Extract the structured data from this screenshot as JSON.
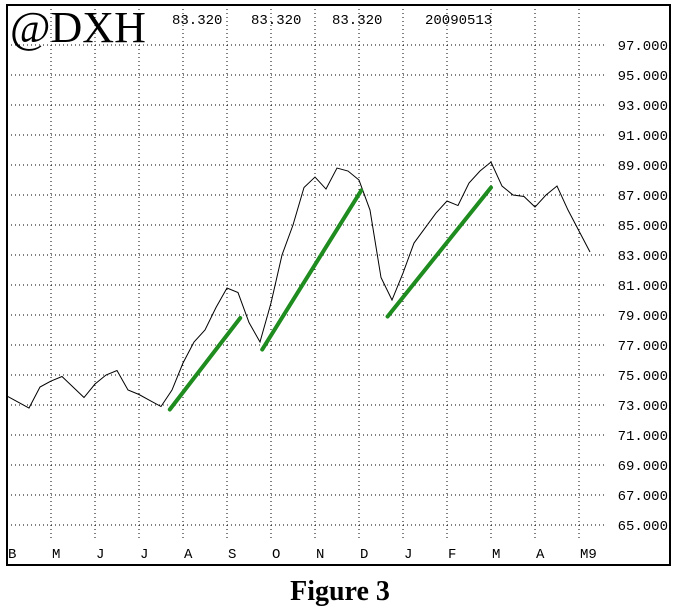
{
  "chart_data": {
    "type": "line",
    "title": "@DXH",
    "header_values": [
      "83.320",
      "83.320",
      "83.320",
      "20090513"
    ],
    "caption": "Figure 3",
    "x": [
      0,
      5,
      10,
      15,
      20,
      25,
      30,
      35,
      40,
      45,
      50,
      55,
      60,
      65,
      70,
      75,
      80,
      85,
      90,
      95,
      100,
      105,
      110,
      115,
      120,
      125,
      130,
      135,
      140,
      145,
      150,
      155,
      160,
      165,
      170,
      175,
      180,
      185,
      190,
      195,
      200,
      205,
      210,
      215,
      220,
      225,
      230,
      235,
      240,
      245,
      250,
      255,
      260,
      265
    ],
    "series": [
      {
        "name": "@DXH",
        "color": "#000000",
        "values": [
          73.6,
          73.2,
          72.8,
          74.2,
          74.6,
          74.9,
          74.2,
          73.5,
          74.4,
          75.0,
          75.3,
          74.0,
          73.7,
          73.3,
          72.9,
          74.0,
          75.8,
          77.2,
          78.0,
          79.5,
          80.8,
          80.5,
          78.5,
          77.2,
          79.8,
          83.0,
          85.0,
          87.5,
          88.2,
          87.4,
          88.8,
          88.6,
          88.0,
          86.0,
          81.5,
          80.0,
          81.8,
          83.8,
          84.8,
          85.8,
          86.6,
          86.3,
          87.8,
          88.6,
          89.2,
          87.6,
          87.0,
          86.9,
          86.2,
          87.0,
          87.6,
          86.0,
          84.6,
          83.2
        ]
      }
    ],
    "trend_lines": {
      "color": "#1e8c1e",
      "lines": [
        {
          "x": [
            74,
            106
          ],
          "y": [
            72.7,
            78.8
          ]
        },
        {
          "x": [
            116,
            161
          ],
          "y": [
            76.7,
            87.3
          ]
        },
        {
          "x": [
            173,
            220
          ],
          "y": [
            78.9,
            87.5
          ]
        }
      ]
    },
    "xlim": [
      0,
      270
    ],
    "xticks": [
      {
        "value": 0,
        "label": "B"
      },
      {
        "value": 20,
        "label": "M"
      },
      {
        "value": 40,
        "label": "J"
      },
      {
        "value": 60,
        "label": "J"
      },
      {
        "value": 80,
        "label": "A"
      },
      {
        "value": 100,
        "label": "S"
      },
      {
        "value": 120,
        "label": "O"
      },
      {
        "value": 140,
        "label": "N"
      },
      {
        "value": 160,
        "label": "D"
      },
      {
        "value": 180,
        "label": "J"
      },
      {
        "value": 200,
        "label": "F"
      },
      {
        "value": 220,
        "label": "M"
      },
      {
        "value": 240,
        "label": "A"
      },
      {
        "value": 260,
        "label": "M9"
      }
    ],
    "ylim": [
      64,
      99.67
    ],
    "yticks": [
      {
        "value": 65,
        "label": "65.000"
      },
      {
        "value": 67,
        "label": "67.000"
      },
      {
        "value": 69,
        "label": "69.000"
      },
      {
        "value": 71,
        "label": "71.000"
      },
      {
        "value": 73,
        "label": "73.000"
      },
      {
        "value": 75,
        "label": "75.000"
      },
      {
        "value": 77,
        "label": "77.000"
      },
      {
        "value": 79,
        "label": "79.000"
      },
      {
        "value": 81,
        "label": "81.000"
      },
      {
        "value": 83,
        "label": "83.000"
      },
      {
        "value": 85,
        "label": "85.000"
      },
      {
        "value": 87,
        "label": "87.000"
      },
      {
        "value": 89,
        "label": "89.000"
      },
      {
        "value": 91,
        "label": "91.000"
      },
      {
        "value": 93,
        "label": "93.000"
      },
      {
        "value": 95,
        "label": "95.000"
      },
      {
        "value": 97,
        "label": "97.000"
      }
    ],
    "grid": true
  }
}
